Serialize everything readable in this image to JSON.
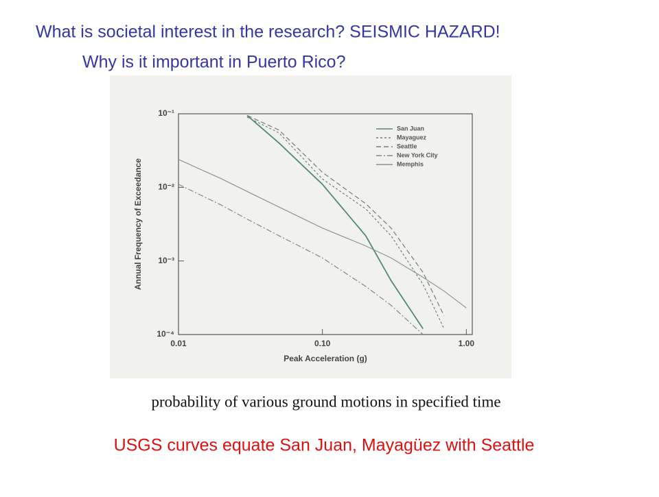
{
  "slide": {
    "heading": [
      "What is societal interest in the research?  SEISMIC HAZARD!",
      "Why is it important in Puerto Rico?"
    ],
    "caption": "probability of various ground motions in specified time",
    "footnote": "USGS curves equate San Juan, Mayagüez with Seattle"
  },
  "chart_data": {
    "type": "line",
    "x_label": "Peak Acceleration (g)",
    "y_label": "Annual Frequency of Exceedance",
    "x": [
      0.01,
      0.02,
      0.03,
      0.05,
      0.1,
      0.2,
      0.3,
      0.5,
      0.7,
      1.0
    ],
    "series": [
      {
        "name": "San Juan",
        "color": "#4f8a78",
        "style": "solid",
        "values": [
          null,
          null,
          0.095,
          0.04,
          0.011,
          0.0022,
          0.00054,
          0.00012,
          null,
          null
        ]
      },
      {
        "name": "Mayaguez",
        "color": "#6e7f78",
        "style": "dotted",
        "values": [
          null,
          null,
          0.09,
          0.055,
          0.013,
          0.0051,
          0.0022,
          0.00048,
          0.00012,
          null
        ]
      },
      {
        "name": "Seattle",
        "color": "#6e7f78",
        "style": "dashed",
        "values": [
          null,
          null,
          0.095,
          0.06,
          0.016,
          0.006,
          0.0028,
          0.0007,
          0.00018,
          null
        ]
      },
      {
        "name": "New York City",
        "color": "#7d8a85",
        "style": "dashdot",
        "values": [
          0.011,
          0.0057,
          0.0037,
          0.0022,
          0.0011,
          0.00045,
          0.00025,
          0.0001,
          null,
          null
        ]
      },
      {
        "name": "Memphis",
        "color": "#8a9690",
        "style": "solid",
        "values": [
          0.024,
          0.013,
          0.0088,
          0.0054,
          0.0028,
          0.0016,
          0.0011,
          0.0006,
          0.00039,
          0.00023
        ]
      }
    ],
    "log_x": true,
    "log_y": true,
    "xlim": [
      0.01,
      1.1
    ],
    "ylim": [
      0.0001,
      0.1
    ],
    "xticks": [
      {
        "value": 0.01,
        "label": "0.01"
      },
      {
        "value": 0.1,
        "label": "0.10"
      },
      {
        "value": 1,
        "label": "1.00"
      }
    ],
    "yticks": [
      {
        "value": 0.0001,
        "label": "10⁻⁴"
      },
      {
        "value": 0.001,
        "label": "10⁻³"
      },
      {
        "value": 0.01,
        "label": "10⁻²"
      },
      {
        "value": 0.1,
        "label": "10⁻¹"
      }
    ],
    "legend": "top-right"
  }
}
